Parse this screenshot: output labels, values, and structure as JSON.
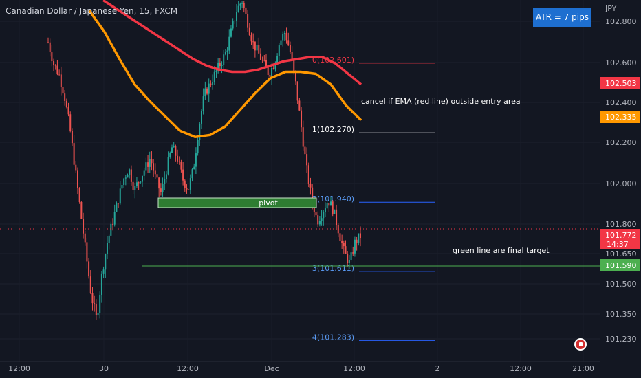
{
  "chart_title": "Canadian Dollar / Japanese Yen, 15, FXCM",
  "atr_badge": "ATR = 7 pips",
  "currency_label": "JPY",
  "annotations": {
    "ema_note": "cancel if EMA (red line) outside entry area",
    "target_note": "green line are final target",
    "pivot_label": "pivot"
  },
  "colors": {
    "background": "#131722",
    "ema_red": "#f23645",
    "ema_orange": "#ff9800",
    "candle_up": "#26a69a",
    "candle_down": "#ef5350",
    "fib_blue": "#2962ff",
    "target_green": "#4caf50",
    "pivot_fill": "#2e7d32",
    "current_price": "#f23645"
  },
  "chart_data": {
    "type": "candlestick",
    "title": "Canadian Dollar / Japanese Yen, 15, FXCM",
    "ylim": [
      101.18,
      102.88
    ],
    "y_ticks": [
      "102.800",
      "102.600",
      "102.400",
      "102.200",
      "102.000",
      "101.800",
      "101.650",
      "101.500",
      "101.350",
      "101.230"
    ],
    "y_tick_values": [
      102.8,
      102.6,
      102.4,
      102.2,
      102.0,
      101.8,
      101.65,
      101.5,
      101.35,
      101.23
    ],
    "x_ticks": [
      "12:00",
      "30",
      "12:00",
      "Dec",
      "12:00",
      "2",
      "12:00",
      "21:00"
    ],
    "fib_levels": [
      {
        "label": "0(102.601)",
        "value": 102.601
      },
      {
        "label": "1(102.270)",
        "value": 102.27
      },
      {
        "label": "2(101.940)",
        "value": 101.94
      },
      {
        "label": "3(101.611)",
        "value": 101.611
      },
      {
        "label": "4(101.283)",
        "value": 101.283
      }
    ],
    "pivot_zone": {
      "high": 101.92,
      "low": 101.89
    },
    "price_labels": [
      {
        "name": "ema-red",
        "value": "102.503",
        "color": "#f23645"
      },
      {
        "name": "ema-orange",
        "value": "102.335",
        "color": "#ff9800"
      },
      {
        "name": "current-price",
        "value": "101.772",
        "sub": "14:37",
        "color": "#f23645"
      },
      {
        "name": "target",
        "value": "101.590",
        "color": "#4caf50"
      }
    ],
    "target_line": 101.59,
    "current_price": 101.772,
    "price_path": [
      102.7,
      102.6,
      102.55,
      102.45,
      102.3,
      102.1,
      101.9,
      101.7,
      101.5,
      101.38,
      101.6,
      101.75,
      101.85,
      101.95,
      102.05,
      102.1,
      102.0,
      102.05,
      102.1,
      102.15,
      102.05,
      101.98,
      102.1,
      102.2,
      102.15,
      102.05,
      102.0,
      102.1,
      102.3,
      102.45,
      102.5,
      102.55,
      102.6,
      102.65,
      102.75,
      102.85,
      102.9,
      102.8,
      102.7,
      102.65,
      102.6,
      102.55,
      102.6,
      102.7,
      102.75,
      102.65,
      102.5,
      102.3,
      102.1,
      101.95,
      101.85,
      101.9,
      101.95,
      101.9,
      101.8,
      101.7,
      101.65,
      101.75,
      101.78
    ],
    "ema_red": [
      102.9,
      102.86,
      102.82,
      102.78,
      102.74,
      102.7,
      102.66,
      102.62,
      102.59,
      102.57,
      102.56,
      102.56,
      102.57,
      102.59,
      102.61,
      102.62,
      102.63,
      102.63,
      102.6,
      102.55,
      102.5
    ],
    "ema_orange": [
      102.85,
      102.75,
      102.62,
      102.5,
      102.42,
      102.35,
      102.28,
      102.25,
      102.26,
      102.3,
      102.38,
      102.46,
      102.53,
      102.56,
      102.56,
      102.55,
      102.5,
      102.4,
      102.33
    ]
  }
}
